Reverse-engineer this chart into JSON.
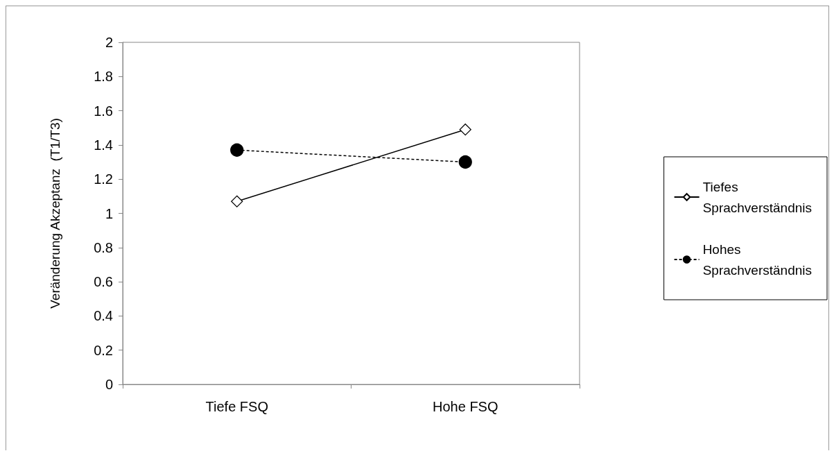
{
  "chart_data": {
    "type": "line",
    "ylabel": "Veränderung Akzeptanz  (T1/T3)",
    "categories": [
      "Tiefe FSQ",
      "Hohe FSQ"
    ],
    "series": [
      {
        "name": "Tiefes Sprachverständnis",
        "color": "#000000",
        "values": [
          1.07,
          1.49
        ],
        "marker": "diamond",
        "line_style": "solid"
      },
      {
        "name": "Hohes Sprachverständnis",
        "color": "#000000",
        "values": [
          1.37,
          1.3
        ],
        "marker": "circle",
        "line_style": "dashed"
      }
    ],
    "ylim": [
      0,
      2
    ],
    "yticks": [
      0,
      0.2,
      0.4,
      0.6,
      0.8,
      1,
      1.2,
      1.4,
      1.6,
      1.8,
      2
    ],
    "grid": false,
    "legend": "right"
  }
}
